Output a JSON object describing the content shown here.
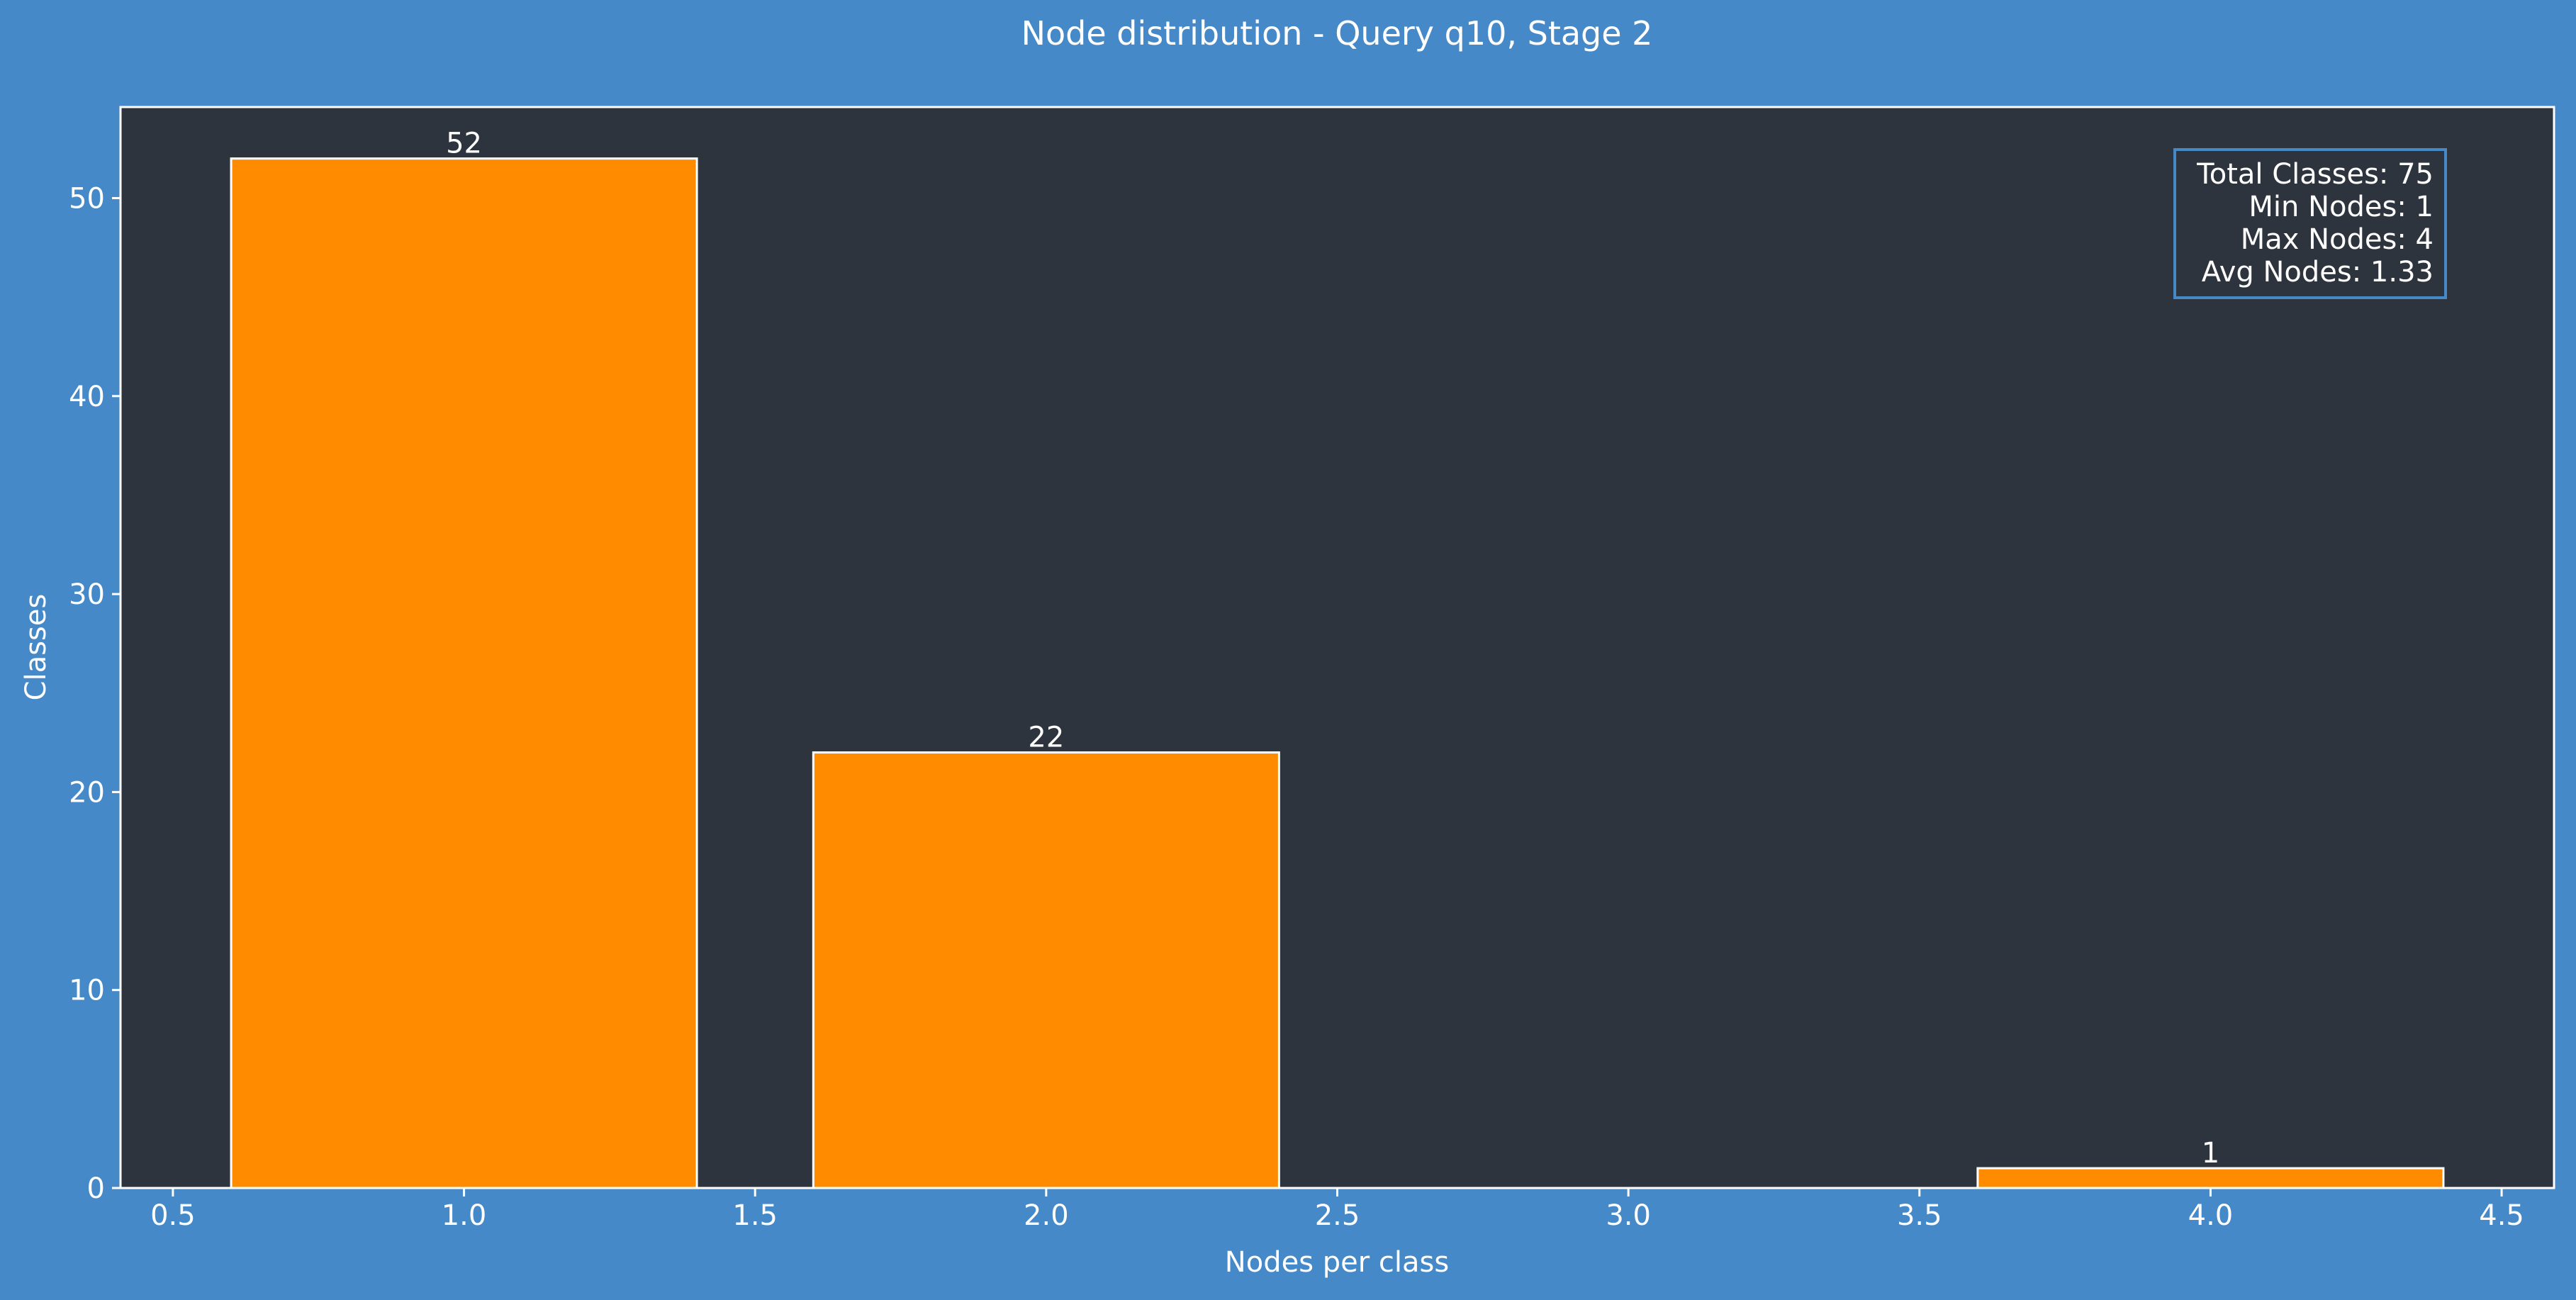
{
  "colors": {
    "figure_background": "#4589c8",
    "plot_background": "#2e343d",
    "bar_fill": "#ff8c00",
    "bar_edge": "#ffffff",
    "text": "#ffffff",
    "stats_box_border": "#4589c8"
  },
  "chart_data": {
    "type": "bar",
    "title": "Node distribution - Query q10, Stage 2",
    "xlabel": "Nodes per class",
    "ylabel": "Classes",
    "x": [
      1,
      2,
      4
    ],
    "values": [
      52,
      22,
      1
    ],
    "data_labels": [
      "52",
      "22",
      "1"
    ],
    "bar_width": 0.8,
    "xlim": [
      0.41,
      4.59
    ],
    "ylim": [
      0,
      54.6
    ],
    "xticks": [
      0.5,
      1.0,
      1.5,
      2.0,
      2.5,
      3.0,
      3.5,
      4.0,
      4.5
    ],
    "xtick_labels": [
      "0.5",
      "1.0",
      "1.5",
      "2.0",
      "2.5",
      "3.0",
      "3.5",
      "4.0",
      "4.5"
    ],
    "yticks": [
      0,
      10,
      20,
      30,
      40,
      50
    ],
    "ytick_labels": [
      "0",
      "10",
      "20",
      "30",
      "40",
      "50"
    ],
    "grid": false,
    "legend": "none",
    "annotation_position": "top-right",
    "annotation_lines": [
      "Total Classes: 75",
      "Min Nodes: 1",
      "Max Nodes: 4",
      "Avg Nodes: 1.33"
    ]
  }
}
